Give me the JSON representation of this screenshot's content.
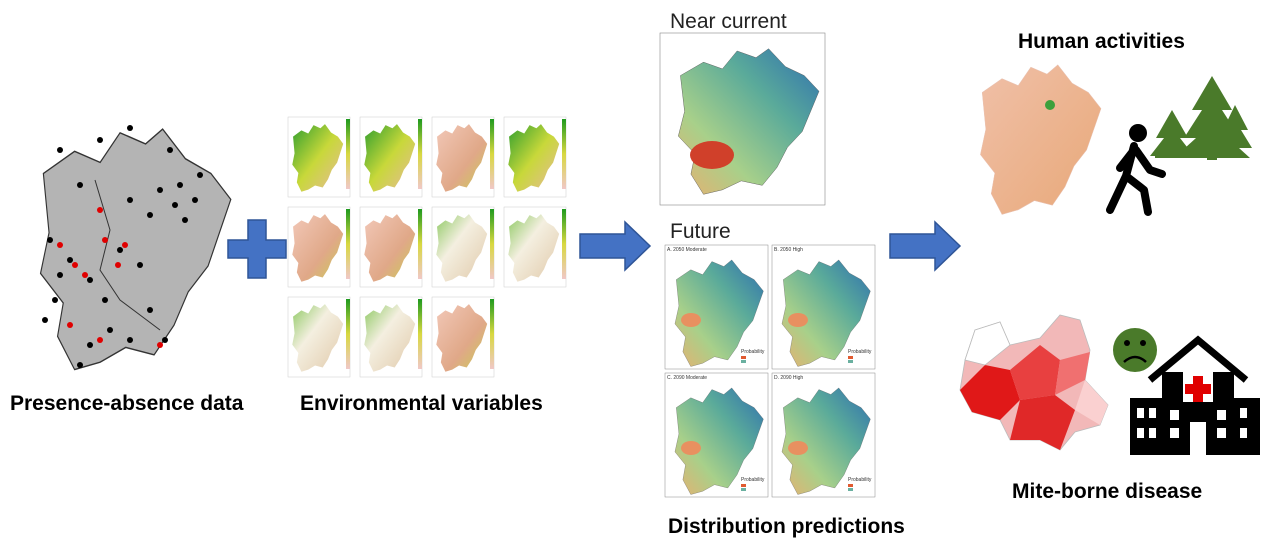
{
  "presence": {
    "label": "Presence-absence data"
  },
  "environment": {
    "label": "Environmental variables"
  },
  "predictions": {
    "near_current": "Near current",
    "future": "Future",
    "panels": [
      "A. 2050 Moderate",
      "B. 2050 High",
      "C. 2090 Moderate",
      "D. 2090 High"
    ],
    "legend_title": "Probability",
    "label": "Distribution predictions"
  },
  "outcomes": {
    "human": "Human activities",
    "disease": "Mite-borne disease"
  }
}
